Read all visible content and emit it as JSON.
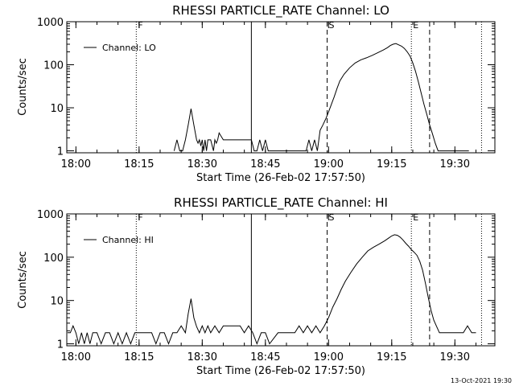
{
  "chart_data": [
    {
      "type": "line",
      "title": "RHESSI PARTICLE_RATE Channel: LO",
      "xlabel": "Start Time (26-Feb-02 17:57:50)",
      "ylabel": "Counts/sec",
      "yscale": "log",
      "ylim": [
        0.9,
        1000
      ],
      "xlim": [
        "17:57:50",
        "19:39:30"
      ],
      "x_ticks": [
        "18:00",
        "18:15",
        "18:30",
        "18:45",
        "19:00",
        "19:15",
        "19:30"
      ],
      "y_ticks": [
        "1",
        "10",
        "100",
        "1000"
      ],
      "legend": {
        "label": "Channel: LO",
        "position": "top-left"
      },
      "grid": false,
      "markers": [
        {
          "label": "F",
          "time": "18:14:20",
          "style": "dotted"
        },
        {
          "label": "",
          "time": "18:41:40",
          "style": "solid"
        },
        {
          "label": "S",
          "time": "18:59:40",
          "style": "dashed"
        },
        {
          "label": "E",
          "time": "19:19:40",
          "style": "dotted"
        },
        {
          "label": "",
          "time": "19:24:00",
          "style": "dashed"
        },
        {
          "label": "",
          "time": "19:36:20",
          "style": "dotted"
        }
      ],
      "series": [
        {
          "name": "Channel: LO",
          "x": [
            "18:23:20",
            "18:24:00",
            "18:24:40",
            "18:25:20",
            "18:26:00",
            "18:26:40",
            "18:27:20",
            "18:28:00",
            "18:28:40",
            "18:29:00",
            "18:29:20",
            "18:29:40",
            "18:30:00",
            "18:30:20",
            "18:30:40",
            "18:31:00",
            "18:31:20",
            "18:32:00",
            "18:32:40",
            "18:33:00",
            "18:33:20",
            "18:33:40",
            "18:34:00",
            "18:35:00",
            "18:35:40",
            "18:36:20",
            "18:37:00",
            "18:38:00",
            "18:39:00",
            "18:40:00",
            "18:41:00",
            "18:41:40",
            "18:42:20",
            "18:43:00",
            "18:43:40",
            "18:44:20",
            "18:45:00",
            "18:45:40",
            "18:46:20",
            "18:54:40",
            "18:55:20",
            "18:56:00",
            "18:56:40",
            "18:57:20",
            "18:58:00",
            "18:58:40",
            "18:59:20",
            "19:00:00",
            "19:00:40",
            "19:01:20",
            "19:02:00",
            "19:02:40",
            "19:03:40",
            "19:05:00",
            "19:06:20",
            "19:07:40",
            "19:09:00",
            "19:10:20",
            "19:11:40",
            "19:13:00",
            "19:14:00",
            "19:14:40",
            "19:15:20",
            "19:16:00",
            "19:16:40",
            "19:17:20",
            "19:18:00",
            "19:18:40",
            "19:19:20",
            "19:20:00",
            "19:20:40",
            "19:21:20",
            "19:22:00",
            "19:22:40",
            "19:23:20",
            "19:24:00",
            "19:24:40",
            "19:25:20",
            "19:26:00",
            "19:26:40",
            "19:27:20",
            "19:28:00",
            "19:28:40",
            "19:29:20",
            "19:30:00",
            "19:30:40",
            "19:31:20",
            "19:32:00",
            "19:32:40",
            "19:33:20"
          ],
          "y": [
            1,
            1.8,
            1,
            1,
            1.8,
            4,
            9.5,
            4,
            1.8,
            1.5,
            1.8,
            1.3,
            1.8,
            1,
            1.8,
            1,
            1.8,
            1.8,
            1,
            1.8,
            1.5,
            1.8,
            2.6,
            1.8,
            1.8,
            1.8,
            1.8,
            1.8,
            1.8,
            1.8,
            1.8,
            1.8,
            1,
            1,
            1.8,
            1,
            1.8,
            1,
            1,
            1,
            1.8,
            1,
            1.8,
            1,
            3,
            4,
            5.5,
            8,
            12,
            18,
            28,
            42,
            60,
            85,
            110,
            130,
            145,
            165,
            190,
            220,
            250,
            280,
            300,
            310,
            290,
            270,
            240,
            200,
            160,
            110,
            70,
            40,
            22,
            12,
            7,
            4,
            2.5,
            1.5,
            1,
            1,
            1,
            1,
            1,
            1,
            1,
            1,
            1,
            1,
            1,
            1
          ]
        }
      ]
    },
    {
      "type": "line",
      "title": "RHESSI PARTICLE_RATE Channel: HI",
      "xlabel": "Start Time (26-Feb-02 17:57:50)",
      "ylabel": "Counts/sec",
      "yscale": "log",
      "ylim": [
        0.9,
        1000
      ],
      "xlim": [
        "17:57:50",
        "19:39:30"
      ],
      "x_ticks": [
        "18:00",
        "18:15",
        "18:30",
        "18:45",
        "19:00",
        "19:15",
        "19:30"
      ],
      "y_ticks": [
        "1",
        "10",
        "100",
        "1000"
      ],
      "legend": {
        "label": "Channel: HI",
        "position": "top-left"
      },
      "grid": false,
      "markers": [
        {
          "label": "F",
          "time": "18:14:20",
          "style": "dotted"
        },
        {
          "label": "",
          "time": "18:41:40",
          "style": "solid"
        },
        {
          "label": "S",
          "time": "18:59:40",
          "style": "dashed"
        },
        {
          "label": "E",
          "time": "19:19:40",
          "style": "dotted"
        },
        {
          "label": "",
          "time": "19:24:00",
          "style": "dashed"
        },
        {
          "label": "",
          "time": "19:36:20",
          "style": "dotted"
        }
      ],
      "series": [
        {
          "name": "Channel: HI",
          "x": [
            "17:58:00",
            "17:58:40",
            "17:59:20",
            "18:00:00",
            "18:00:40",
            "18:01:20",
            "18:02:00",
            "18:02:40",
            "18:03:20",
            "18:04:00",
            "18:05:00",
            "18:06:00",
            "18:07:00",
            "18:08:00",
            "18:09:00",
            "18:10:00",
            "18:11:00",
            "18:12:00",
            "18:13:00",
            "18:14:00",
            "18:15:00",
            "18:16:00",
            "18:17:00",
            "18:18:00",
            "18:19:00",
            "18:20:00",
            "18:21:00",
            "18:22:00",
            "18:23:00",
            "18:24:00",
            "18:25:00",
            "18:26:00",
            "18:26:40",
            "18:27:20",
            "18:28:00",
            "18:28:40",
            "18:29:20",
            "18:30:00",
            "18:30:40",
            "18:31:20",
            "18:32:00",
            "18:33:00",
            "18:34:00",
            "18:35:00",
            "18:36:00",
            "18:37:00",
            "18:38:00",
            "18:39:00",
            "18:40:00",
            "18:41:00",
            "18:42:00",
            "18:43:00",
            "18:44:00",
            "18:45:00",
            "18:46:00",
            "18:48:00",
            "18:50:00",
            "18:52:00",
            "18:53:00",
            "18:54:00",
            "18:55:00",
            "18:56:00",
            "18:57:00",
            "18:58:00",
            "18:59:00",
            "19:00:00",
            "19:01:00",
            "19:02:00",
            "19:03:00",
            "19:04:00",
            "19:05:20",
            "19:06:40",
            "19:08:00",
            "19:09:20",
            "19:10:40",
            "19:12:00",
            "19:13:20",
            "19:14:20",
            "19:15:00",
            "19:15:40",
            "19:16:20",
            "19:17:00",
            "19:17:40",
            "19:18:20",
            "19:19:00",
            "19:19:40",
            "19:20:20",
            "19:21:00",
            "19:21:40",
            "19:22:20",
            "19:23:00",
            "19:23:40",
            "19:24:20",
            "19:25:00",
            "19:25:40",
            "19:26:20",
            "19:27:00",
            "19:28:00",
            "19:29:00",
            "19:30:00",
            "19:31:00",
            "19:32:00",
            "19:33:00",
            "19:34:00",
            "19:35:00"
          ],
          "y": [
            1.8,
            1.8,
            2.6,
            1.8,
            1,
            1.8,
            1,
            1.8,
            1,
            1.8,
            1.8,
            1,
            1.8,
            1.8,
            1,
            1.8,
            1,
            1.8,
            1,
            1.8,
            1.8,
            1.8,
            1.8,
            1.8,
            1,
            1.8,
            1.8,
            1,
            1.8,
            1.8,
            2.6,
            1.8,
            5,
            11,
            4,
            2.5,
            1.8,
            2.6,
            1.8,
            2.6,
            1.8,
            2.6,
            1.8,
            2.6,
            2.6,
            2.6,
            2.6,
            2.6,
            1.8,
            2.6,
            1.8,
            1,
            1.8,
            1.8,
            1,
            1.8,
            1.8,
            1.8,
            2.6,
            1.8,
            2.6,
            1.8,
            2.6,
            1.8,
            2.6,
            4,
            7,
            11,
            18,
            28,
            45,
            70,
            100,
            140,
            170,
            200,
            240,
            280,
            310,
            330,
            320,
            290,
            250,
            210,
            180,
            150,
            130,
            110,
            80,
            50,
            25,
            12,
            6,
            3.5,
            2.5,
            1.8,
            1.8,
            1.8,
            1.8,
            1.8,
            1.8,
            1.8,
            2.6,
            1.8,
            1.8
          ]
        }
      ]
    }
  ],
  "footer": {
    "timestamp": "13-Oct-2021 19:30"
  }
}
